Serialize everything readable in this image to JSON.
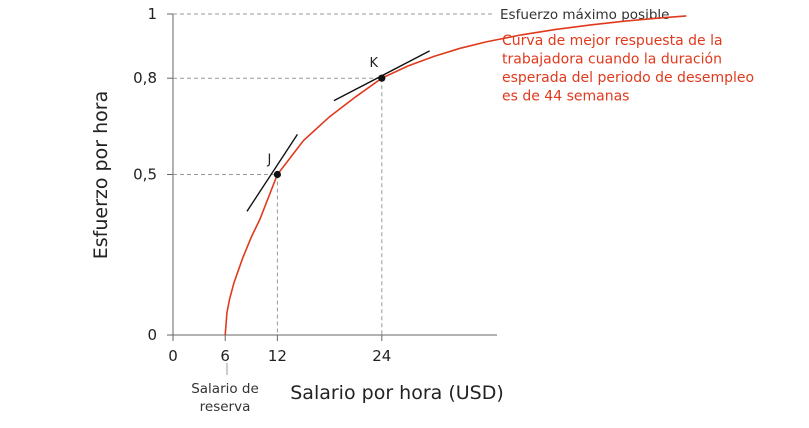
{
  "chart_data": {
    "type": "line",
    "xlabel": "Salario por hora (USD)",
    "ylabel": "Esfuerzo por hora",
    "xlim": [
      0,
      62
    ],
    "ylim": [
      0,
      1
    ],
    "x_ticks": [
      "0",
      "6",
      "12",
      "24"
    ],
    "x_tick_values": [
      0,
      6,
      12,
      24
    ],
    "y_ticks": [
      "0",
      "0,5",
      "0,8",
      "1"
    ],
    "y_tick_values": [
      0,
      0.5,
      0.8,
      1
    ],
    "grid": false,
    "max_effort_label": "Esfuerzo máximo posible",
    "reservation_wage_label": [
      "Salario de",
      "reserva"
    ],
    "series": [
      {
        "name": "Curva de mejor respuesta de la trabajadora cuando la duración esperada del periodo de desempleo es de 44 semanas",
        "label_lines": [
          "Curva de mejor respuesta de la",
          "trabajadora cuando la duración",
          "esperada del periodo de desempleo",
          "es de 44 semanas"
        ],
        "color": "#e03a1e",
        "x": [
          6,
          6.2,
          6.5,
          7,
          8,
          9,
          10,
          12,
          15,
          18,
          21,
          24,
          27,
          30,
          33,
          36,
          40,
          44,
          48,
          52,
          56,
          59
        ],
        "y": [
          0,
          0.069,
          0.112,
          0.162,
          0.239,
          0.305,
          0.361,
          0.5,
          0.606,
          0.68,
          0.742,
          0.8,
          0.838,
          0.868,
          0.893,
          0.913,
          0.935,
          0.952,
          0.966,
          0.978,
          0.988,
          0.994
        ]
      }
    ],
    "points": [
      {
        "label": "J",
        "x": 12,
        "y": 0.5
      },
      {
        "label": "K",
        "x": 24,
        "y": 0.8
      }
    ],
    "tangents": [
      {
        "at": "J",
        "x": [
          8.5,
          14.3
        ],
        "y": [
          0.385,
          0.625
        ]
      },
      {
        "at": "K",
        "x": [
          18.5,
          29.5
        ],
        "y": [
          0.73,
          0.885
        ]
      }
    ],
    "colors": {
      "curve": "#e03a1e",
      "axis": "#666666",
      "guide": "#999999",
      "tangent": "#111111",
      "point": "#111111"
    }
  }
}
